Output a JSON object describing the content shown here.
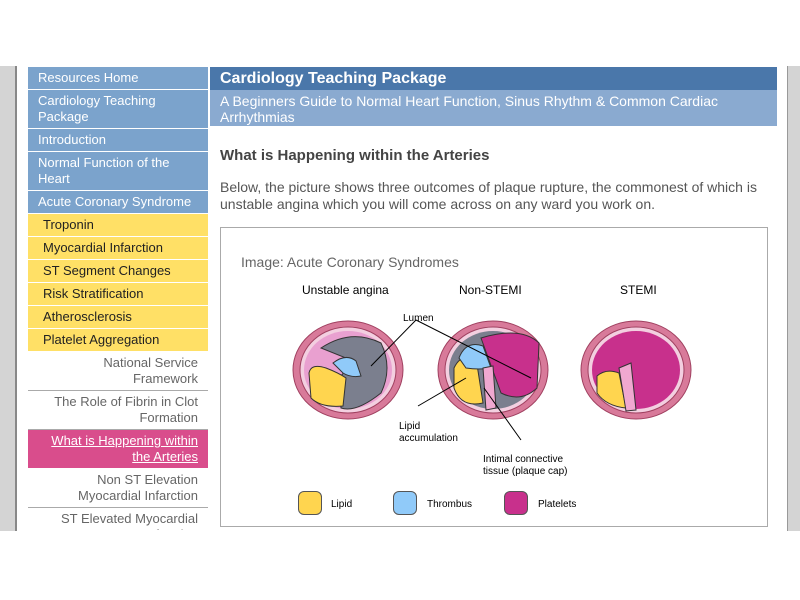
{
  "sidebar": {
    "items": [
      {
        "label": "Resources Home",
        "style": "blue"
      },
      {
        "label": "Cardiology Teaching Package",
        "style": "blue"
      },
      {
        "label": "Introduction",
        "style": "blue"
      },
      {
        "label": "Normal Function of the Heart",
        "style": "blue"
      },
      {
        "label": "Acute Coronary Syndrome",
        "style": "blue"
      },
      {
        "label": "Troponin",
        "style": "yellow"
      },
      {
        "label": "Myocardial Infarction",
        "style": "yellow"
      },
      {
        "label": "ST Segment Changes",
        "style": "yellow"
      },
      {
        "label": "Risk Stratification",
        "style": "yellow"
      },
      {
        "label": "Atherosclerosis",
        "style": "yellow"
      },
      {
        "label": "Platelet Aggregation",
        "style": "yellow"
      },
      {
        "label": "National Service Framework",
        "style": "white"
      },
      {
        "label": "The Role of Fibrin in Clot Formation",
        "style": "white"
      },
      {
        "label": "What is Happening within the Arteries",
        "style": "active"
      },
      {
        "label": "Non ST Elevation Myocardial Infarction",
        "style": "white"
      },
      {
        "label": "ST Elevated Myocardial Infarction",
        "style": "white"
      }
    ]
  },
  "header": {
    "title": "Cardiology Teaching Package",
    "subtitle": "A Beginners Guide to Normal Heart Function, Sinus Rhythm & Common Cardiac Arrhythmias"
  },
  "content": {
    "heading": "What is Happening within the Arteries",
    "intro": "Below, the picture shows three outcomes of plaque rupture, the commonest of which is unstable angina which you will come across on any ward you work on."
  },
  "figure": {
    "caption": "Image: Acute Coronary Syndromes",
    "panels": [
      "Unstable angina",
      "Non-STEMI",
      "STEMI"
    ],
    "labels": {
      "lumen": "Lumen",
      "lipid": "Lipid accumulation",
      "cap": "Intimal connective tissue (plaque cap)"
    },
    "legend": [
      {
        "label": "Lipid",
        "color": "#ffd54f"
      },
      {
        "label": "Thrombus",
        "color": "#90caf9"
      },
      {
        "label": "Platelets",
        "color": "#c8308c"
      }
    ]
  },
  "colors": {
    "nav_blue": "#7ba3cc",
    "nav_yellow": "#ffe066",
    "nav_active": "#d94d8c",
    "header": "#4a77aa",
    "subheader": "#8aaad0"
  }
}
